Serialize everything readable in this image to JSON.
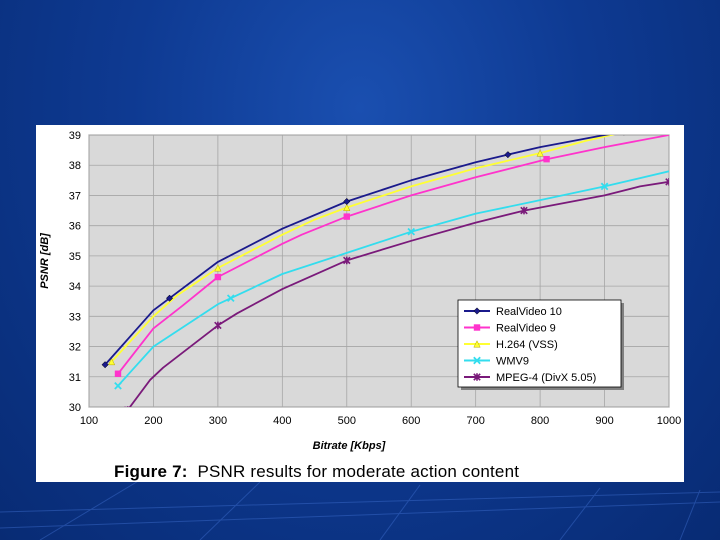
{
  "caption": {
    "label": "Figure 7:",
    "text": "PSNR results for moderate action content"
  },
  "chart_data": {
    "type": "line",
    "title": "",
    "xlabel": "Bitrate [Kbps]",
    "ylabel": "PSNR [dB]",
    "xlim": [
      100,
      1000
    ],
    "ylim": [
      30,
      39
    ],
    "x_ticks": [
      "100",
      "200",
      "300",
      "400",
      "500",
      "600",
      "700",
      "800",
      "900",
      "1000"
    ],
    "y_ticks": [
      "30",
      "31",
      "32",
      "33",
      "34",
      "35",
      "36",
      "37",
      "38",
      "39"
    ],
    "grid": true,
    "legend_position": "lower-right",
    "series": [
      {
        "name": "RealVideo 10",
        "color": "#1a1a8c",
        "marker": "diamond",
        "x": [
          125,
          150,
          200,
          225,
          300,
          400,
          500,
          600,
          700,
          750,
          800,
          900,
          930
        ],
        "y": [
          31.4,
          32.0,
          33.2,
          33.6,
          34.8,
          35.9,
          36.8,
          37.5,
          38.1,
          38.35,
          38.6,
          39.0,
          39.1
        ]
      },
      {
        "name": "RealVideo 9",
        "color": "#ff33cc",
        "marker": "square",
        "x": [
          145,
          200,
          245,
          300,
          400,
          430,
          500,
          600,
          700,
          810,
          900,
          1000
        ],
        "y": [
          31.1,
          32.6,
          33.35,
          34.3,
          35.4,
          35.7,
          36.3,
          37.0,
          37.6,
          38.2,
          38.6,
          39.0
        ]
      },
      {
        "name": "H.264 (VSS)",
        "color": "#ffff33",
        "marker": "triangle",
        "x": [
          135,
          200,
          237,
          300,
          400,
          450,
          500,
          600,
          700,
          800,
          870,
          930
        ],
        "y": [
          31.5,
          33.0,
          33.7,
          34.6,
          35.7,
          36.2,
          36.6,
          37.3,
          37.9,
          38.4,
          38.8,
          39.1
        ]
      },
      {
        "name": "WMV9",
        "color": "#33ddee",
        "marker": "x",
        "x": [
          145,
          200,
          300,
          320,
          400,
          500,
          600,
          700,
          790,
          900,
          1000
        ],
        "y": [
          30.7,
          32.0,
          33.4,
          33.6,
          34.4,
          35.1,
          35.8,
          36.4,
          36.8,
          37.3,
          37.8
        ]
      },
      {
        "name": "MPEG-4 (DivX 5.05)",
        "color": "#7a1a7a",
        "marker": "star",
        "x": [
          160,
          195,
          215,
          300,
          330,
          400,
          500,
          600,
          700,
          775,
          900,
          955,
          1000
        ],
        "y": [
          29.9,
          30.9,
          31.3,
          32.7,
          33.1,
          33.9,
          34.85,
          35.5,
          36.1,
          36.5,
          37.0,
          37.3,
          37.45
        ]
      }
    ]
  }
}
